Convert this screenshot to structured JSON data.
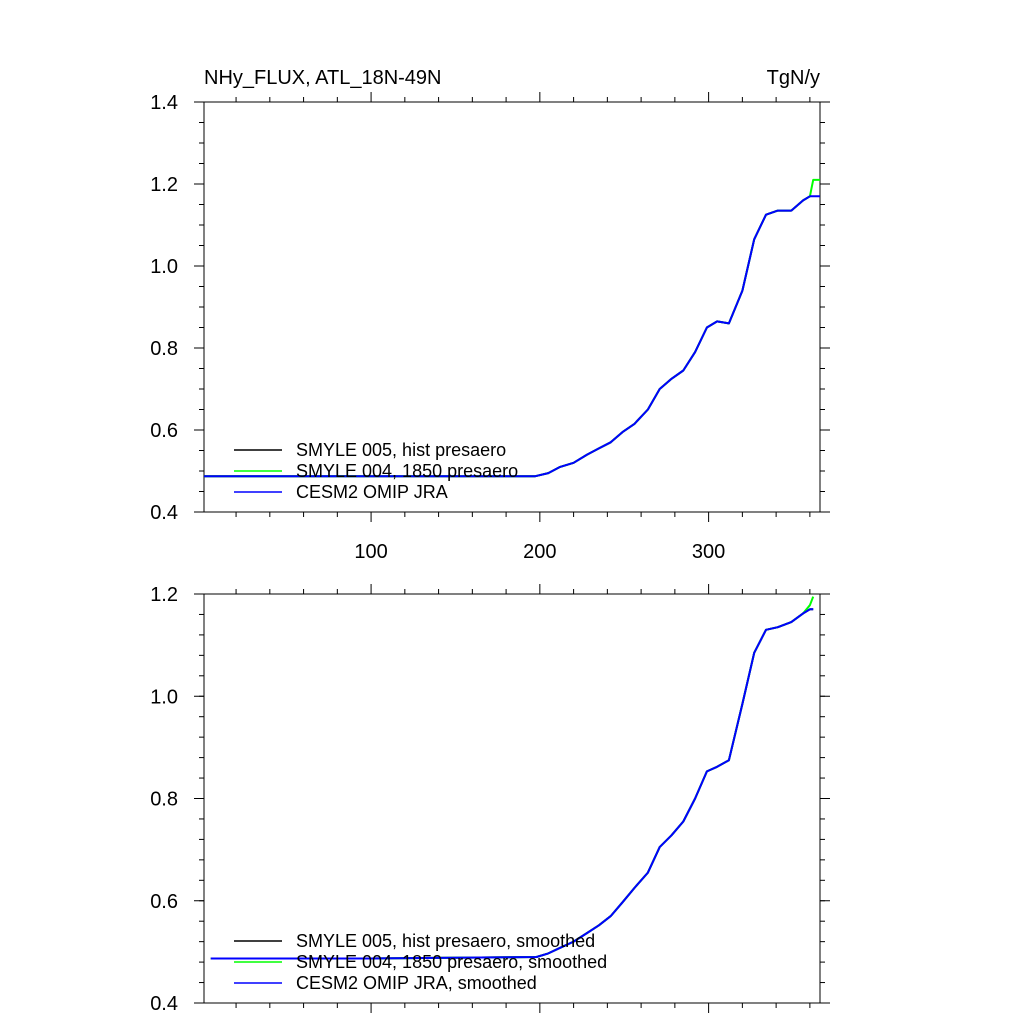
{
  "chart_data": [
    {
      "type": "line",
      "title": "NHy_FLUX, ATL_18N-49N",
      "units": "TgN/y",
      "xlim": [
        1,
        366
      ],
      "ylim": [
        0.4,
        1.4
      ],
      "xticks": [
        100,
        200,
        300
      ],
      "yticks": [
        0.4,
        0.6,
        0.8,
        1.0,
        1.2,
        1.4
      ],
      "ytick_labels": [
        "0.4",
        "0.6",
        "0.8",
        "1.0",
        "1.2",
        "1.4"
      ],
      "xtick_labels": [
        "100",
        "200",
        "300"
      ],
      "legend": [
        "SMYLE 005, hist presaero",
        "SMYLE 004, 1850 presaero",
        "CESM2 OMIP JRA"
      ],
      "series": [
        {
          "name": "SMYLE 005, hist presaero",
          "color": "#000000",
          "x": [
            1,
            100,
            197,
            205,
            212,
            220,
            228,
            235,
            242,
            249,
            256,
            264,
            271,
            278,
            285,
            292,
            299,
            305,
            312,
            320,
            327,
            334,
            341,
            349,
            356,
            360
          ],
          "y": [
            0.487,
            0.487,
            0.487,
            0.495,
            0.51,
            0.52,
            0.54,
            0.555,
            0.57,
            0.595,
            0.615,
            0.65,
            0.7,
            0.725,
            0.745,
            0.79,
            0.85,
            0.865,
            0.86,
            0.94,
            1.065,
            1.125,
            1.135,
            1.135,
            1.16,
            1.17
          ]
        },
        {
          "name": "SMYLE 004, 1850 presaero",
          "color": "#00ff00",
          "x": [
            1,
            100,
            197,
            205,
            212,
            220,
            228,
            235,
            242,
            249,
            256,
            264,
            271,
            278,
            285,
            292,
            299,
            305,
            312,
            320,
            327,
            334,
            341,
            349,
            356,
            360,
            362,
            366
          ],
          "y": [
            0.487,
            0.487,
            0.487,
            0.495,
            0.51,
            0.52,
            0.54,
            0.555,
            0.57,
            0.595,
            0.615,
            0.65,
            0.7,
            0.725,
            0.745,
            0.79,
            0.85,
            0.865,
            0.86,
            0.94,
            1.065,
            1.125,
            1.135,
            1.135,
            1.16,
            1.17,
            1.21,
            1.21
          ]
        },
        {
          "name": "CESM2 OMIP JRA",
          "color": "#0000ff",
          "x": [
            1,
            100,
            197,
            205,
            212,
            220,
            228,
            235,
            242,
            249,
            256,
            264,
            271,
            278,
            285,
            292,
            299,
            305,
            312,
            320,
            327,
            334,
            341,
            349,
            356,
            360,
            366
          ],
          "y": [
            0.487,
            0.487,
            0.487,
            0.495,
            0.51,
            0.52,
            0.54,
            0.555,
            0.57,
            0.595,
            0.615,
            0.65,
            0.7,
            0.725,
            0.745,
            0.79,
            0.85,
            0.865,
            0.86,
            0.94,
            1.065,
            1.125,
            1.135,
            1.135,
            1.16,
            1.17,
            1.17
          ]
        }
      ]
    },
    {
      "type": "line",
      "title": "",
      "xlim": [
        1,
        366
      ],
      "ylim": [
        0.4,
        1.2
      ],
      "xticks": [
        100,
        200,
        300
      ],
      "yticks": [
        0.4,
        0.6,
        0.8,
        1.0,
        1.2
      ],
      "ytick_labels": [
        "0.4",
        "0.6",
        "0.8",
        "1.0",
        "1.2"
      ],
      "legend": [
        "SMYLE 005, hist presaero, smoothed",
        "SMYLE 004, 1850 presaero, smoothed",
        "CESM2 OMIP JRA, smoothed"
      ],
      "series": [
        {
          "name": "SMYLE 005, hist presaero, smoothed",
          "color": "#000000",
          "x": [
            5,
            100,
            198,
            205,
            212,
            220,
            228,
            235,
            242,
            249,
            256,
            264,
            271,
            278,
            285,
            292,
            299,
            305,
            312,
            320,
            327,
            334,
            341,
            349,
            356,
            360,
            362
          ],
          "y": [
            0.487,
            0.487,
            0.49,
            0.497,
            0.508,
            0.52,
            0.537,
            0.552,
            0.57,
            0.597,
            0.625,
            0.655,
            0.705,
            0.728,
            0.755,
            0.8,
            0.853,
            0.862,
            0.875,
            0.985,
            1.085,
            1.13,
            1.135,
            1.145,
            1.162,
            1.17,
            1.17
          ]
        },
        {
          "name": "SMYLE 004, 1850 presaero, smoothed",
          "color": "#00ff00",
          "x": [
            5,
            100,
            198,
            205,
            212,
            220,
            228,
            235,
            242,
            249,
            256,
            264,
            271,
            278,
            285,
            292,
            299,
            305,
            312,
            320,
            327,
            334,
            341,
            349,
            356,
            360,
            362
          ],
          "y": [
            0.487,
            0.487,
            0.49,
            0.497,
            0.508,
            0.52,
            0.537,
            0.552,
            0.57,
            0.597,
            0.625,
            0.655,
            0.705,
            0.728,
            0.755,
            0.8,
            0.853,
            0.862,
            0.875,
            0.985,
            1.085,
            1.13,
            1.135,
            1.145,
            1.162,
            1.178,
            1.195
          ]
        },
        {
          "name": "CESM2 OMIP JRA, smoothed",
          "color": "#0000ff",
          "x": [
            5,
            100,
            198,
            205,
            212,
            220,
            228,
            235,
            242,
            249,
            256,
            264,
            271,
            278,
            285,
            292,
            299,
            305,
            312,
            320,
            327,
            334,
            341,
            349,
            356,
            360,
            362
          ],
          "y": [
            0.487,
            0.487,
            0.49,
            0.497,
            0.508,
            0.52,
            0.537,
            0.552,
            0.57,
            0.597,
            0.625,
            0.655,
            0.705,
            0.728,
            0.755,
            0.8,
            0.853,
            0.862,
            0.875,
            0.985,
            1.085,
            1.13,
            1.135,
            1.145,
            1.162,
            1.17,
            1.17
          ]
        }
      ]
    }
  ]
}
